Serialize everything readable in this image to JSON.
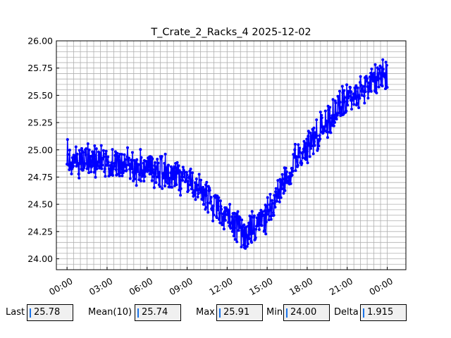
{
  "chart_data": {
    "type": "line",
    "title": "T_Crate_2_Racks_4 2025-12-02",
    "xlabel": "",
    "ylabel": "",
    "x_ticks": [
      "00:00",
      "03:00",
      "06:00",
      "09:00",
      "12:00",
      "15:00",
      "18:00",
      "21:00",
      "00:00"
    ],
    "x_range_hours": [
      -0.8,
      25.4
    ],
    "ylim": [
      23.9,
      26.0
    ],
    "y_ticks": [
      "24.00",
      "24.25",
      "24.50",
      "24.75",
      "25.00",
      "25.25",
      "25.50",
      "25.75",
      "26.00"
    ],
    "grid": true,
    "line_color": "#0000ff",
    "marker": "circle",
    "trend_points": [
      {
        "x": 0.0,
        "y": 24.92
      },
      {
        "x": 1.5,
        "y": 24.9
      },
      {
        "x": 3.0,
        "y": 24.88
      },
      {
        "x": 4.5,
        "y": 24.86
      },
      {
        "x": 6.0,
        "y": 24.84
      },
      {
        "x": 7.5,
        "y": 24.8
      },
      {
        "x": 9.0,
        "y": 24.72
      },
      {
        "x": 10.0,
        "y": 24.62
      },
      {
        "x": 11.0,
        "y": 24.5
      },
      {
        "x": 12.0,
        "y": 24.38
      },
      {
        "x": 13.0,
        "y": 24.28
      },
      {
        "x": 13.5,
        "y": 24.25
      },
      {
        "x": 14.0,
        "y": 24.28
      },
      {
        "x": 14.5,
        "y": 24.33
      },
      {
        "x": 15.0,
        "y": 24.4
      },
      {
        "x": 16.0,
        "y": 24.68
      },
      {
        "x": 17.0,
        "y": 24.88
      },
      {
        "x": 18.0,
        "y": 25.02
      },
      {
        "x": 19.0,
        "y": 25.18
      },
      {
        "x": 20.0,
        "y": 25.35
      },
      {
        "x": 21.0,
        "y": 25.46
      },
      {
        "x": 22.0,
        "y": 25.55
      },
      {
        "x": 23.0,
        "y": 25.64
      },
      {
        "x": 24.0,
        "y": 25.72
      }
    ],
    "noise_amplitude": 0.18,
    "series_end_hours": 24.0
  },
  "stats": {
    "last_label": "Last",
    "last_value": "25.78",
    "mean_label": "Mean(10)",
    "mean_value": "25.74",
    "max_label": "Max",
    "max_value": "25.91",
    "min_label": "Min",
    "min_value": "24.00",
    "delta_label": "Delta",
    "delta_value": "1.915"
  }
}
